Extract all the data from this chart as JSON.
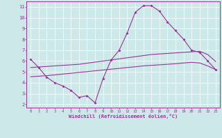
{
  "xlabel": "Windchill (Refroidissement éolien,°C)",
  "bg_color": "#cce8e8",
  "line_color": "#993399",
  "xlim_min": -0.5,
  "xlim_max": 23.5,
  "ylim_min": 1.7,
  "ylim_max": 11.5,
  "yticks": [
    2,
    3,
    4,
    5,
    6,
    7,
    8,
    9,
    10,
    11
  ],
  "xticks": [
    0,
    1,
    2,
    3,
    4,
    5,
    6,
    7,
    8,
    9,
    10,
    11,
    12,
    13,
    14,
    15,
    16,
    17,
    18,
    19,
    20,
    21,
    22,
    23
  ],
  "line1_x": [
    0,
    1,
    2,
    3,
    4,
    5,
    6,
    7,
    8,
    9,
    10,
    11,
    12,
    13,
    14,
    15,
    16,
    17,
    18,
    19,
    20,
    21,
    22,
    23
  ],
  "line1_y": [
    6.15,
    5.4,
    4.5,
    4.0,
    3.7,
    3.3,
    2.65,
    2.8,
    2.15,
    4.4,
    6.1,
    7.0,
    8.6,
    10.5,
    11.1,
    11.1,
    10.6,
    9.6,
    8.8,
    8.0,
    7.0,
    6.8,
    6.0,
    5.2
  ],
  "line2_x": [
    0,
    1,
    2,
    3,
    4,
    5,
    6,
    7,
    8,
    9,
    10,
    11,
    12,
    13,
    14,
    15,
    16,
    17,
    18,
    19,
    20,
    21,
    22,
    23
  ],
  "line2_y": [
    5.4,
    5.45,
    5.5,
    5.55,
    5.6,
    5.65,
    5.7,
    5.8,
    5.9,
    6.0,
    6.1,
    6.2,
    6.3,
    6.4,
    6.5,
    6.6,
    6.65,
    6.7,
    6.75,
    6.8,
    6.85,
    6.9,
    6.6,
    5.95
  ],
  "line3_x": [
    0,
    1,
    2,
    3,
    4,
    5,
    6,
    7,
    8,
    9,
    10,
    11,
    12,
    13,
    14,
    15,
    16,
    17,
    18,
    19,
    20,
    21,
    22,
    23
  ],
  "line3_y": [
    4.55,
    4.6,
    4.65,
    4.72,
    4.8,
    4.87,
    4.95,
    5.02,
    5.1,
    5.17,
    5.25,
    5.32,
    5.4,
    5.47,
    5.55,
    5.6,
    5.65,
    5.7,
    5.75,
    5.82,
    5.88,
    5.82,
    5.55,
    5.2
  ]
}
